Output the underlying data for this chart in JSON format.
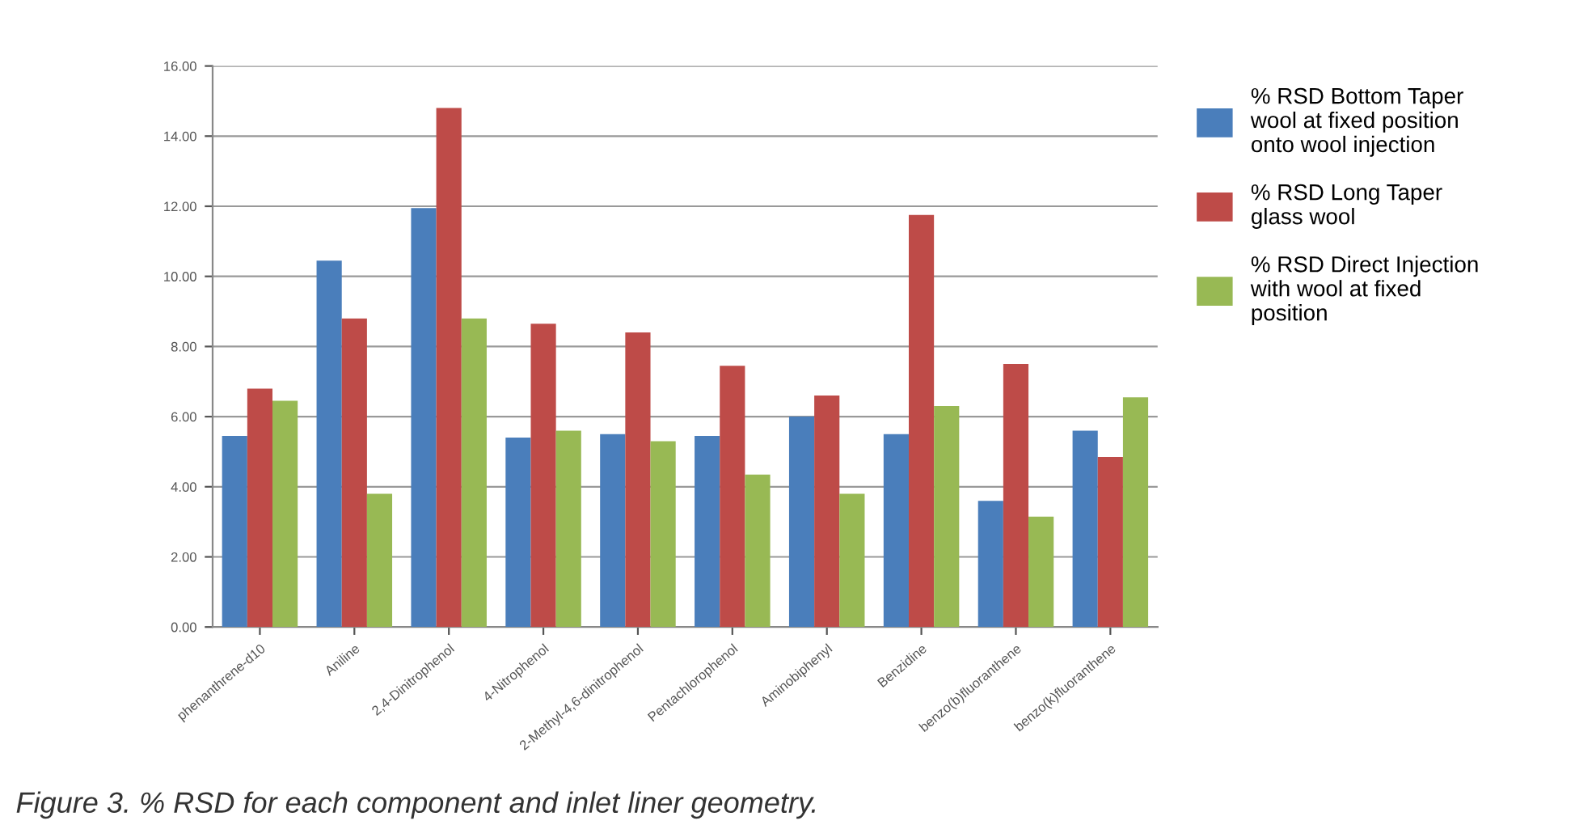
{
  "chart_data": {
    "type": "bar",
    "categories": [
      "phenanthrene-d10",
      "Aniline",
      "2,4-Dinitrophenol",
      "4-Nitrophenol",
      "2-Methyl-4,6-dinitrophenol",
      "Pentachlorophenol",
      "Aminobiphenyl",
      "Benzidine",
      "benzo(b)fluoranthene",
      "benzo(k)fluoranthene"
    ],
    "series": [
      {
        "name": "% RSD Bottom Taper\nwool at fixed position\nonto wool injection",
        "color": "#4a7ebb",
        "values": [
          5.45,
          10.45,
          11.95,
          5.4,
          5.5,
          5.45,
          6.0,
          5.5,
          3.6,
          5.6
        ]
      },
      {
        "name": "% RSD Long Taper\nglass wool",
        "color": "#be4b48",
        "values": [
          6.8,
          8.8,
          14.8,
          8.65,
          8.4,
          7.45,
          6.6,
          11.75,
          7.5,
          4.85
        ]
      },
      {
        "name": "% RSD Direct Injection\nwith wool at fixed\nposition",
        "color": "#98b954",
        "values": [
          6.45,
          3.8,
          8.8,
          5.6,
          5.3,
          4.35,
          3.8,
          6.3,
          3.15,
          6.55
        ]
      }
    ],
    "ylim": [
      0,
      16
    ],
    "yticks": [
      {
        "value": 0,
        "label": "0.00"
      },
      {
        "value": 2,
        "label": "2.00"
      },
      {
        "value": 4,
        "label": "4.00"
      },
      {
        "value": 6,
        "label": "6.00"
      },
      {
        "value": 8,
        "label": "8.00"
      },
      {
        "value": 10,
        "label": "10.00"
      },
      {
        "value": 12,
        "label": "12.00"
      },
      {
        "value": 14,
        "label": "14.00"
      },
      {
        "value": 16,
        "label": "16.00"
      }
    ],
    "grid": "y",
    "legend": "right",
    "annotations": [
      "Figure 3. % RSD for each component and inlet liner geometry."
    ]
  }
}
